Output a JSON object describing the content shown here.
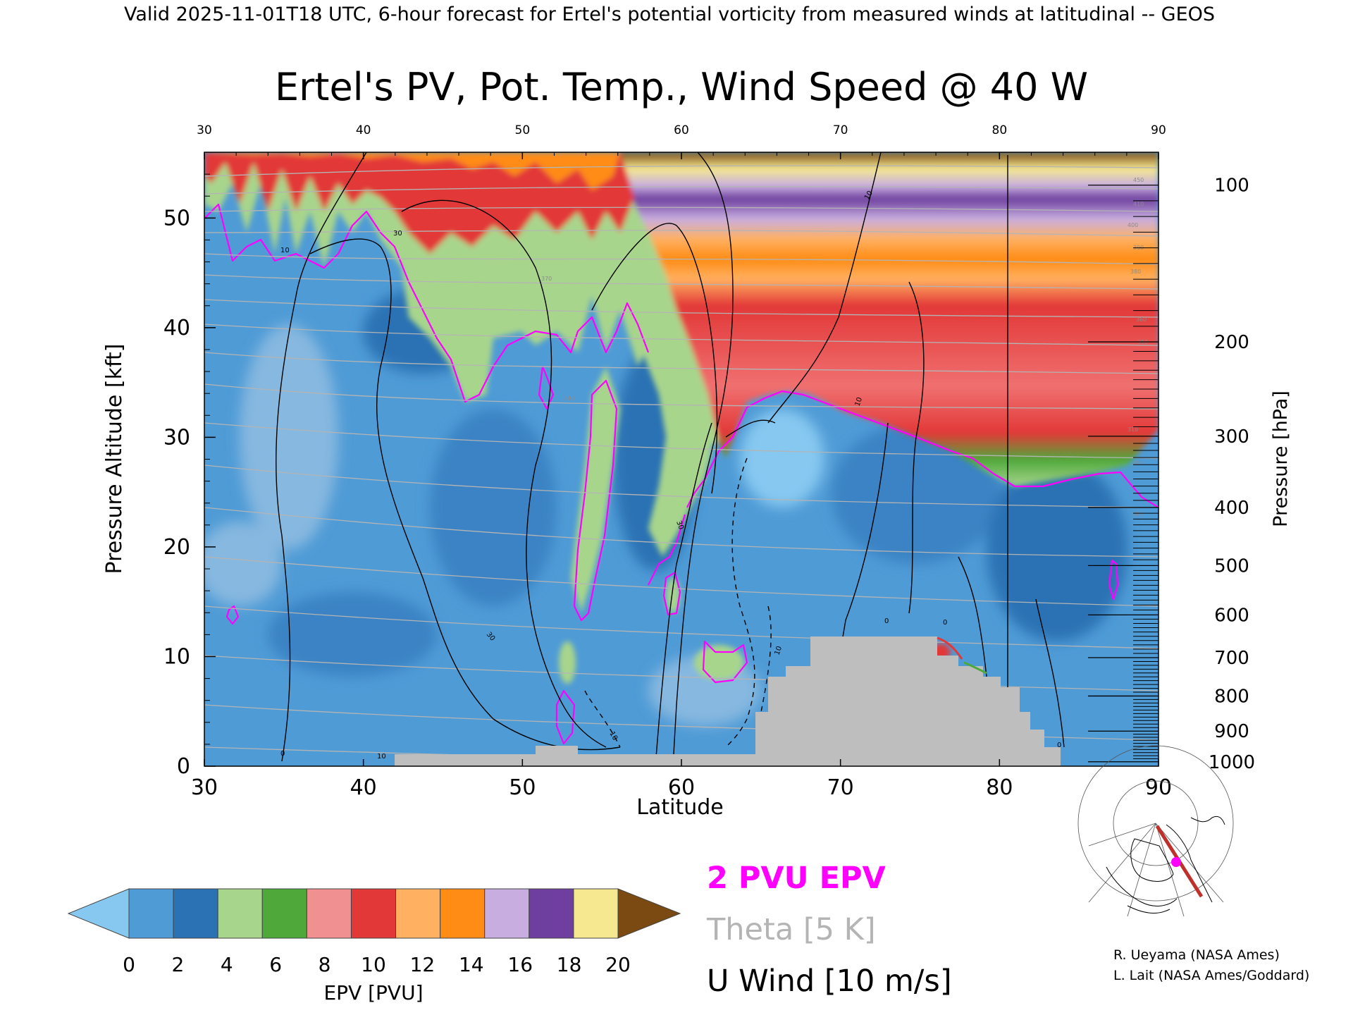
{
  "header": "Valid 2025-11-01T18 UTC, 6-hour forecast for Ertel's potential vorticity from measured winds at latitudinal -- GEOS",
  "chart_data": {
    "type": "heatmap",
    "title": "Ertel's PV, Pot. Temp., Wind Speed @ 40 W",
    "xlabel": "Latitude",
    "ylabel": "Pressure Altitude [kft]",
    "ylabel_right": "Pressure [hPa]",
    "xlim": [
      30,
      90
    ],
    "ylim": [
      0,
      56
    ],
    "x_ticks": [
      "30",
      "40",
      "50",
      "60",
      "70",
      "80",
      "90"
    ],
    "y_ticks": [
      "0",
      "10",
      "20",
      "30",
      "40",
      "50"
    ],
    "pressure_ticks": [
      {
        "label": "100",
        "kft": 53.0
      },
      {
        "label": "200",
        "kft": 38.7
      },
      {
        "label": "300",
        "kft": 30.1
      },
      {
        "label": "400",
        "kft": 23.6
      },
      {
        "label": "500",
        "kft": 18.3
      },
      {
        "label": "600",
        "kft": 13.8
      },
      {
        "label": "700",
        "kft": 9.9
      },
      {
        "label": "800",
        "kft": 6.4
      },
      {
        "label": "900",
        "kft": 3.2
      },
      {
        "label": "1000",
        "kft": 0.4
      }
    ],
    "colorbar": {
      "label": "EPV [PVU]",
      "ticks": [
        "0",
        "2",
        "4",
        "6",
        "8",
        "10",
        "12",
        "14",
        "16",
        "18",
        "20"
      ],
      "colors": [
        "#4f9bd6",
        "#2b72b4",
        "#a8d58c",
        "#4ea83a",
        "#f09090",
        "#e23838",
        "#ffb060",
        "#ff8c14",
        "#c8aee0",
        "#6e3f9e",
        "#f5e890"
      ],
      "under_color": "#86c8f0",
      "over_color": "#7a4a12"
    },
    "series": [
      {
        "name": "2 PVU EPV",
        "color": "#ff00ff"
      },
      {
        "name": "Theta [5 K]",
        "color": "#b4b4b4"
      },
      {
        "name": "U Wind [10 m/s]",
        "color": "#000000"
      }
    ],
    "contour_labels": [
      "10",
      "30",
      "30",
      "10",
      "10",
      "30",
      "0",
      "0",
      "10",
      "10",
      "10",
      "0",
      "0"
    ],
    "theta_labels": [
      "450",
      "410",
      "400",
      "390",
      "380",
      "370",
      "360",
      "350",
      "340",
      "310",
      "300",
      "290"
    ],
    "terrain_color": "#bebebe"
  },
  "credits": [
    "R. Ueyama (NASA Ames)",
    "L. Lait (NASA Ames/Goddard)"
  ],
  "inset_map": {
    "name": "north-atlantic-locator-map",
    "track_color": "#c0302a",
    "marker_color": "#ff00ff"
  }
}
